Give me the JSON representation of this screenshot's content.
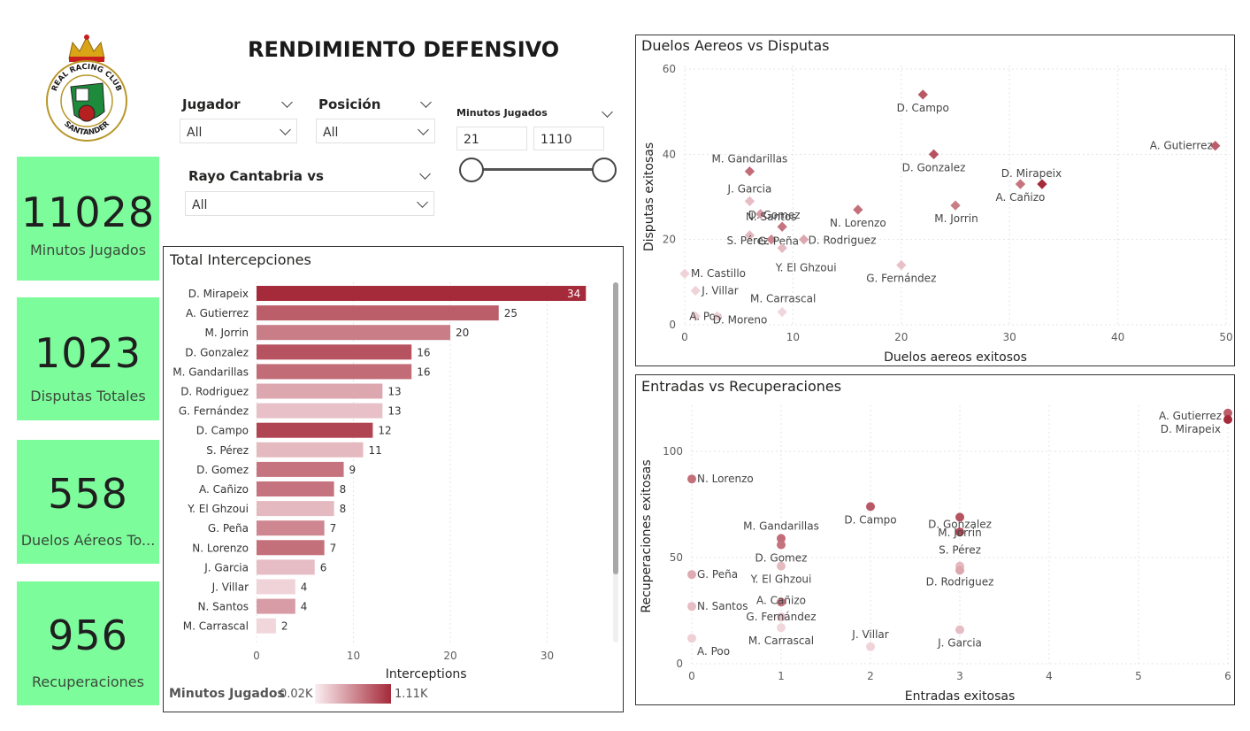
{
  "page_title": "RENDIMIENTO DEFENSIVO",
  "logo": {
    "ring_text_top": "REAL RACING CLUB",
    "ring_text_bottom": "SANTANDER"
  },
  "kpis": [
    {
      "value": "11028",
      "label": "Minutos Jugados"
    },
    {
      "value": "1023",
      "label": "Disputas Totales"
    },
    {
      "value": "558",
      "label": "Duelos Aéreos To..."
    },
    {
      "value": "956",
      "label": "Recuperaciones"
    }
  ],
  "filters": {
    "jugador": {
      "label": "Jugador",
      "value": "All"
    },
    "posicion": {
      "label": "Posición",
      "value": "All"
    },
    "rival": {
      "label": "Rayo Cantabria vs",
      "value": "All"
    },
    "minutos": {
      "label": "Minutos Jugados",
      "min": "21",
      "max": "1110"
    }
  },
  "colors": {
    "kpi_bg": "#7dfc9c",
    "dark_red": "#a52a3a",
    "light_red": "#eed3d8"
  },
  "legend": {
    "label": "Minutos Jugados",
    "min": "0.02K",
    "max": "1.11K"
  },
  "chart_data": [
    {
      "type": "bar",
      "orientation": "horizontal",
      "title": "Total Intercepciones",
      "xlabel": "Interceptions",
      "ylabel": "",
      "xlim": [
        0,
        36
      ],
      "xticks": [
        0,
        10,
        20,
        30
      ],
      "categories": [
        "D. Mirapeix",
        "A. Gutierrez",
        "M. Jorrin",
        "D. Gonzalez",
        "M. Gandarillas",
        "D. Rodriguez",
        "G. Fernández",
        "D. Campo",
        "S. Pérez",
        "D. Gomez",
        "A. Cañizo",
        "Y. El Ghzoui",
        "G. Peña",
        "N. Lorenzo",
        "J. Garcia",
        "J. Villar",
        "N. Santos",
        "M. Carrascal"
      ],
      "values": [
        34,
        25,
        20,
        16,
        16,
        13,
        13,
        12,
        11,
        9,
        8,
        8,
        7,
        7,
        6,
        4,
        4,
        2
      ],
      "color_intensity": [
        1.0,
        0.72,
        0.55,
        0.78,
        0.64,
        0.32,
        0.18,
        0.86,
        0.22,
        0.6,
        0.6,
        0.22,
        0.5,
        0.62,
        0.2,
        0.08,
        0.38,
        0.06
      ]
    },
    {
      "type": "scatter",
      "title": "Duelos Aereos vs Disputas",
      "xlabel": "Duelos aereos exitosos",
      "ylabel": "Disputas exitosas",
      "xlim": [
        0,
        50
      ],
      "ylim": [
        0,
        60
      ],
      "xticks": [
        0,
        10,
        20,
        30,
        40,
        50
      ],
      "yticks": [
        0,
        20,
        40,
        60
      ],
      "points": [
        {
          "label": "D. Campo",
          "x": 22,
          "y": 54,
          "c": 0.75
        },
        {
          "label": "A. Gutierrez",
          "x": 49,
          "y": 42,
          "c": 0.72
        },
        {
          "label": "D. Gonzalez",
          "x": 23,
          "y": 40,
          "c": 0.78
        },
        {
          "label": "D. Mirapeix",
          "x": 33,
          "y": 33,
          "c": 1.0
        },
        {
          "label": "A. Cañizo",
          "x": 31,
          "y": 33,
          "c": 0.6
        },
        {
          "label": "M. Gandarillas",
          "x": 6,
          "y": 36,
          "c": 0.64
        },
        {
          "label": "J. Garcia",
          "x": 6,
          "y": 29,
          "c": 0.2
        },
        {
          "label": "N. Santos",
          "x": 7,
          "y": 26,
          "c": 0.38
        },
        {
          "label": "M. Jorrin",
          "x": 25,
          "y": 28,
          "c": 0.55
        },
        {
          "label": "N. Lorenzo",
          "x": 16,
          "y": 27,
          "c": 0.62
        },
        {
          "label": "D. Gomez",
          "x": 9,
          "y": 23,
          "c": 0.6
        },
        {
          "label": "S. Pérez",
          "x": 6,
          "y": 21,
          "c": 0.22
        },
        {
          "label": "G. Peña",
          "x": 8,
          "y": 20,
          "c": 0.5
        },
        {
          "label": "D. Rodriguez",
          "x": 11,
          "y": 20,
          "c": 0.32
        },
        {
          "label": "Y. El Ghzoui",
          "x": 9,
          "y": 18,
          "c": 0.22
        },
        {
          "label": "G. Fernández",
          "x": 20,
          "y": 14,
          "c": 0.18
        },
        {
          "label": "M. Castillo",
          "x": 0,
          "y": 12,
          "c": 0.08
        },
        {
          "label": "J. Villar",
          "x": 1,
          "y": 8,
          "c": 0.08
        },
        {
          "label": "M. Carrascal",
          "x": 9,
          "y": 3,
          "c": 0.06
        },
        {
          "label": "A. Poo",
          "x": 1,
          "y": 2,
          "c": 0.1
        },
        {
          "label": "D. Moreno",
          "x": 3,
          "y": 2,
          "c": 0.1
        }
      ]
    },
    {
      "type": "scatter",
      "title": "Entradas vs Recuperaciones",
      "xlabel": "Entradas exitosas",
      "ylabel": "Recuperaciones exitosas",
      "xlim": [
        0,
        6
      ],
      "ylim": [
        0,
        120
      ],
      "xticks": [
        0,
        1,
        2,
        3,
        4,
        5,
        6
      ],
      "yticks": [
        0,
        50,
        100
      ],
      "points": [
        {
          "label": "A. Gutierrez",
          "x": 6,
          "y": 118,
          "c": 0.72
        },
        {
          "label": "D. Mirapeix",
          "x": 6,
          "y": 115,
          "c": 1.0
        },
        {
          "label": "N. Lorenzo",
          "x": 0,
          "y": 87,
          "c": 0.62
        },
        {
          "label": "D. Campo",
          "x": 2,
          "y": 74,
          "c": 0.75
        },
        {
          "label": "D. Gonzalez",
          "x": 3,
          "y": 69,
          "c": 0.78
        },
        {
          "label": "M. Jorrin",
          "x": 3,
          "y": 62,
          "c": 0.85
        },
        {
          "label": "M. Gandarillas",
          "x": 1,
          "y": 59,
          "c": 0.64
        },
        {
          "label": "D. Gomez",
          "x": 1,
          "y": 56,
          "c": 0.6
        },
        {
          "label": "S. Pérez",
          "x": 3,
          "y": 46,
          "c": 0.22
        },
        {
          "label": "D. Rodriguez",
          "x": 3,
          "y": 44,
          "c": 0.32
        },
        {
          "label": "Y. El Ghzoui",
          "x": 1,
          "y": 46,
          "c": 0.22
        },
        {
          "label": "G. Peña",
          "x": 0,
          "y": 42,
          "c": 0.3
        },
        {
          "label": "A. Cañizo",
          "x": 1,
          "y": 29,
          "c": 0.6
        },
        {
          "label": "N. Santos",
          "x": 0,
          "y": 27,
          "c": 0.2
        },
        {
          "label": "G. Fernández",
          "x": 1,
          "y": 22,
          "c": 0.18
        },
        {
          "label": "M. Carrascal",
          "x": 1,
          "y": 17,
          "c": 0.06
        },
        {
          "label": "J. Villar",
          "x": 2,
          "y": 8,
          "c": 0.08
        },
        {
          "label": "J. Garcia",
          "x": 3,
          "y": 16,
          "c": 0.2
        },
        {
          "label": "A. Poo",
          "x": 0,
          "y": 12,
          "c": 0.1
        }
      ]
    }
  ]
}
